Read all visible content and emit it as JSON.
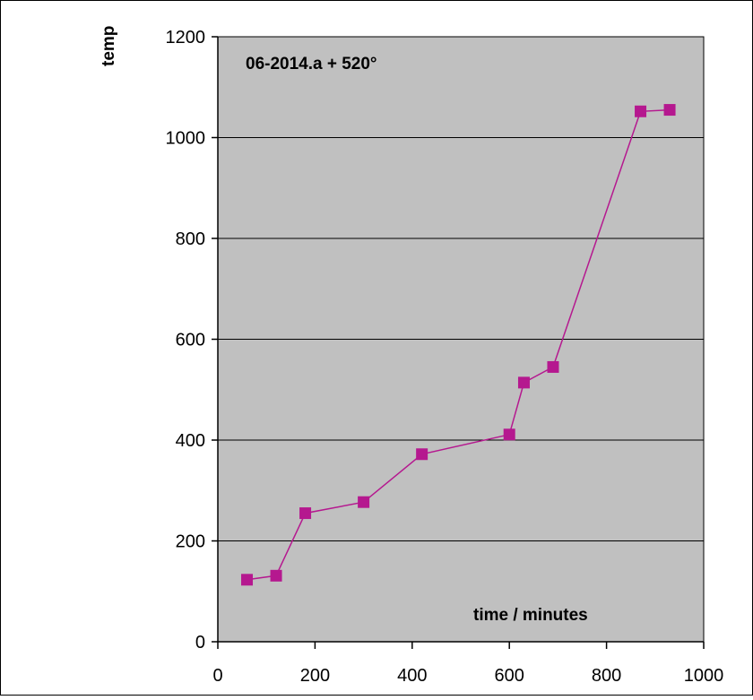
{
  "chart_data": {
    "type": "line",
    "title": "06-2014.a + 520°",
    "xlabel": "time / minutes",
    "ylabel": "temp",
    "xlim": [
      0,
      1000
    ],
    "ylim": [
      0,
      1200
    ],
    "x_ticks": [
      0,
      200,
      400,
      600,
      800,
      1000
    ],
    "y_ticks": [
      0,
      200,
      400,
      600,
      800,
      1000,
      1200
    ],
    "grid": "horizontal",
    "plot_background": "#c0c0c0",
    "series": [
      {
        "color": "#b5188f",
        "marker": "square",
        "points": [
          {
            "x": 60,
            "y": 123
          },
          {
            "x": 120,
            "y": 131
          },
          {
            "x": 180,
            "y": 255
          },
          {
            "x": 300,
            "y": 277
          },
          {
            "x": 420,
            "y": 372
          },
          {
            "x": 600,
            "y": 411
          },
          {
            "x": 630,
            "y": 514
          },
          {
            "x": 690,
            "y": 545
          },
          {
            "x": 870,
            "y": 1052
          },
          {
            "x": 930,
            "y": 1055
          }
        ]
      }
    ]
  }
}
